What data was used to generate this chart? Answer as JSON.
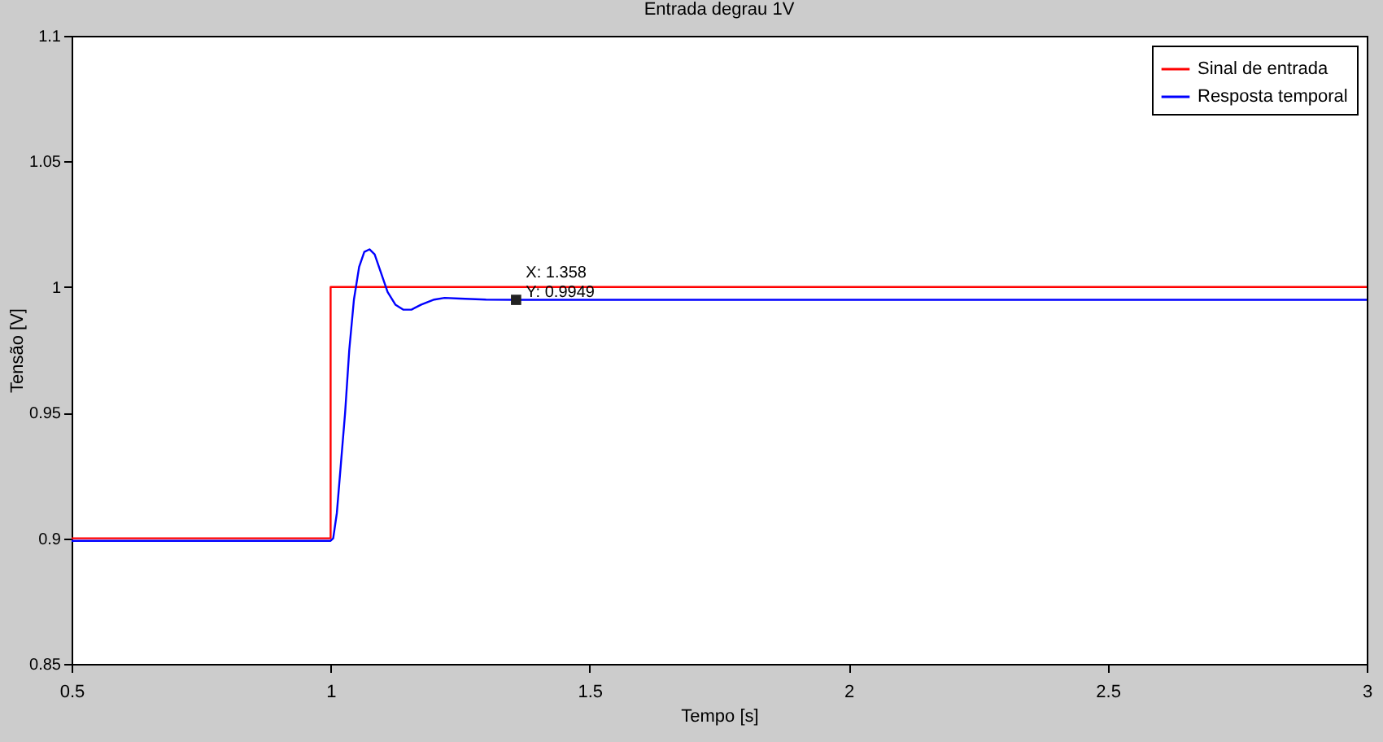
{
  "chart_data": {
    "type": "line",
    "title": "Entrada degrau 1V",
    "xlabel": "Tempo [s]",
    "ylabel": "Tensão [V]",
    "xlim": [
      0.5,
      3
    ],
    "ylim": [
      0.85,
      1.1
    ],
    "xticks": [
      0.5,
      1,
      1.5,
      2,
      2.5,
      3
    ],
    "yticks": [
      0.85,
      0.9,
      0.95,
      1,
      1.05,
      1.1
    ],
    "legend": "top right",
    "series": [
      {
        "name": "Sinal de entrada",
        "color": "#ff0000",
        "x": [
          0.5,
          1,
          1,
          3
        ],
        "values": [
          0.9,
          0.9,
          1,
          1
        ]
      },
      {
        "name": "Resposta temporal",
        "color": "#0000ff",
        "x": [
          0.5,
          1.0,
          1.005,
          1.012,
          1.02,
          1.028,
          1.036,
          1.045,
          1.055,
          1.065,
          1.075,
          1.085,
          1.095,
          1.11,
          1.125,
          1.14,
          1.156,
          1.175,
          1.2,
          1.22,
          1.25,
          1.3,
          1.358,
          3
        ],
        "values": [
          0.899,
          0.899,
          0.9,
          0.91,
          0.93,
          0.95,
          0.975,
          0.995,
          1.008,
          1.014,
          1.015,
          1.013,
          1.007,
          0.998,
          0.993,
          0.991,
          0.991,
          0.993,
          0.995,
          0.9957,
          0.9954,
          0.995,
          0.9949,
          0.9949
        ]
      }
    ],
    "annotations": [
      {
        "text": "X: 1.358\nY: 0.9949",
        "x": 1.358,
        "y": 0.9949
      }
    ]
  }
}
